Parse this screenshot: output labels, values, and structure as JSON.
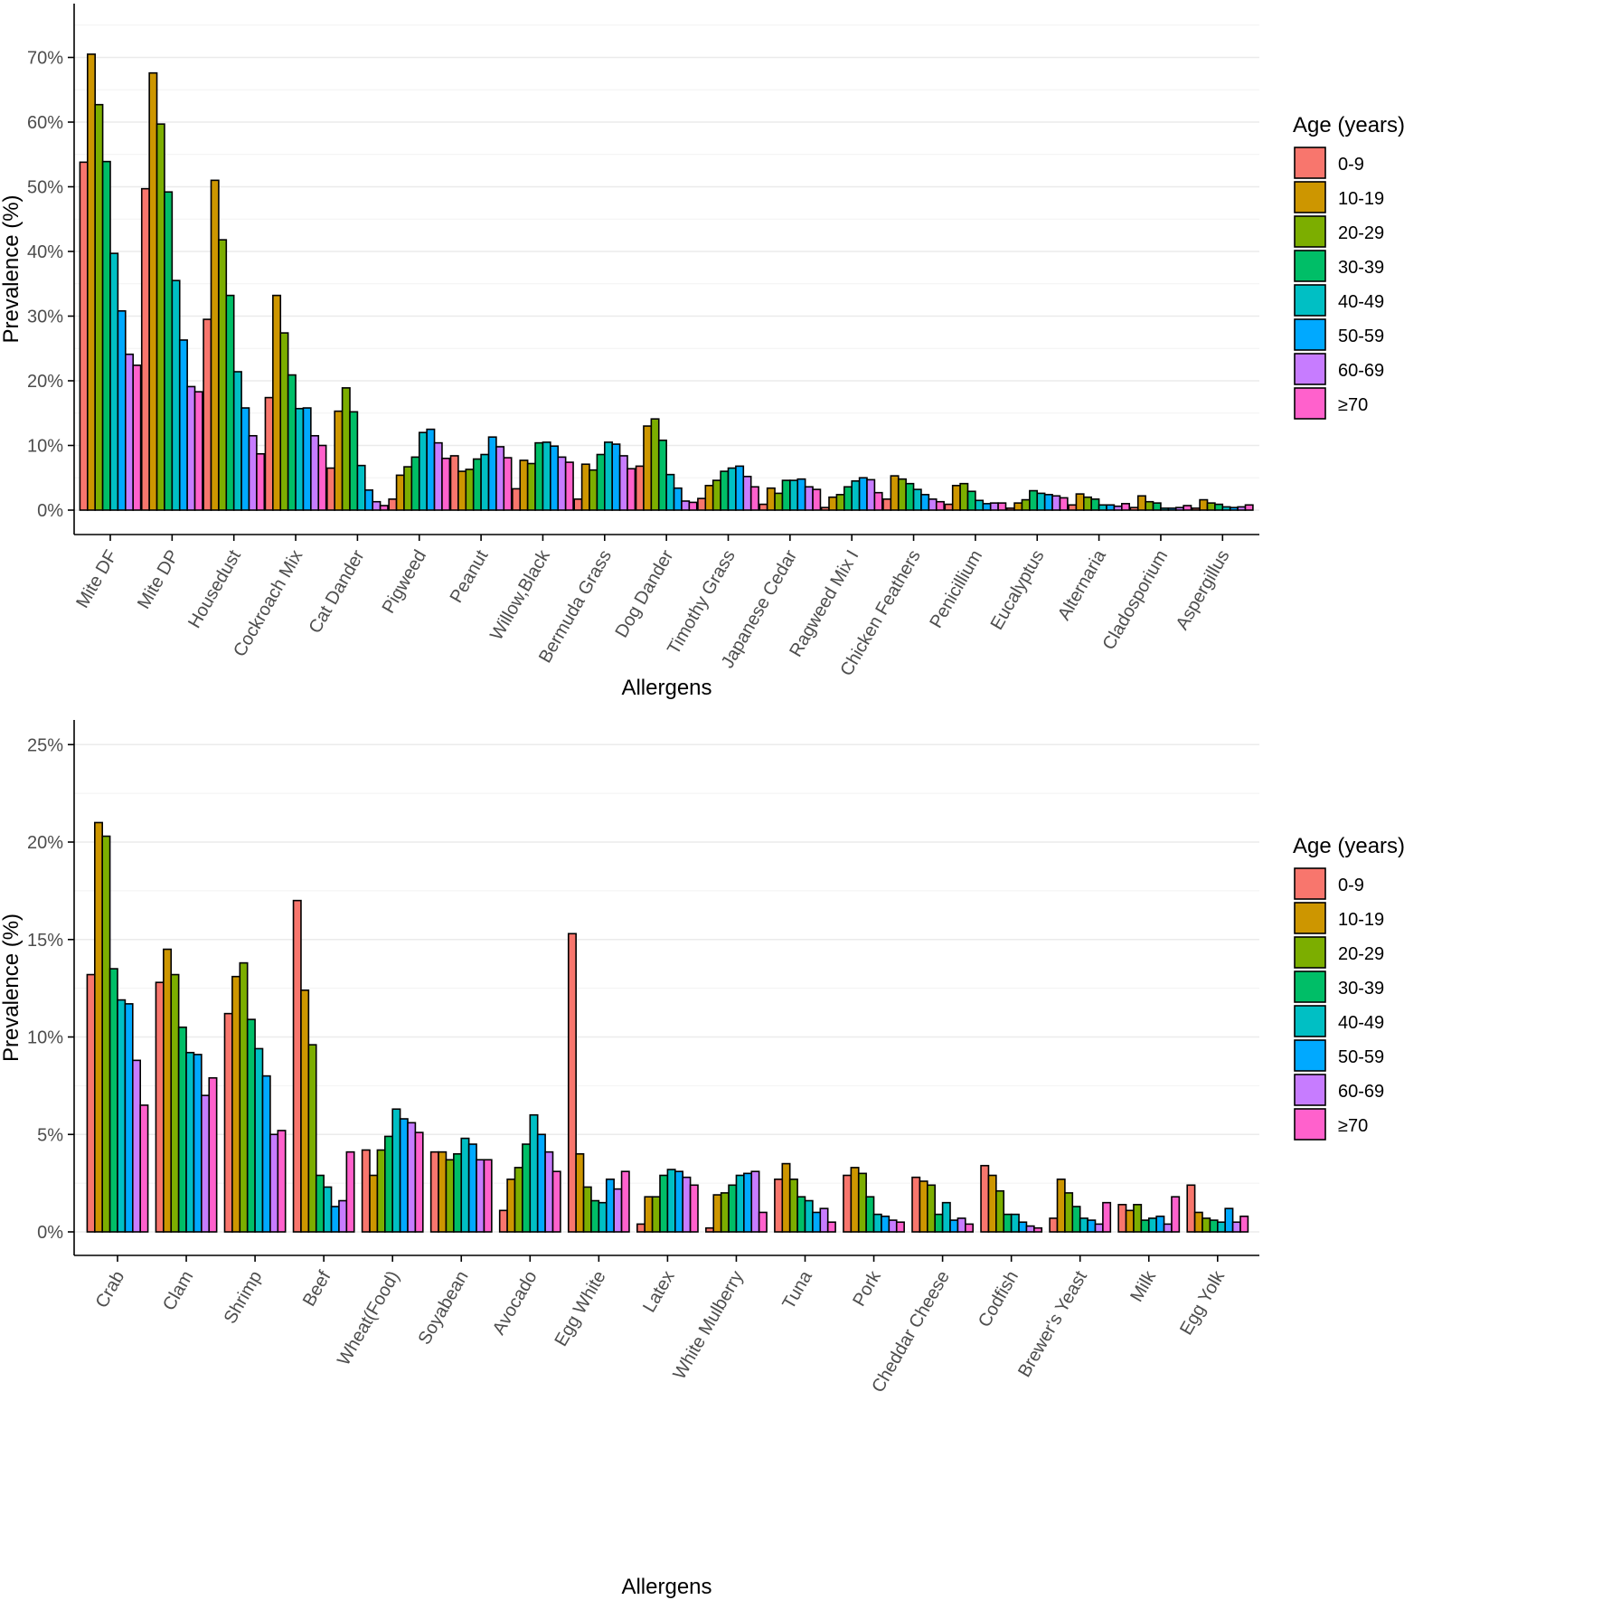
{
  "legend": {
    "title": "Age (years)",
    "groups": [
      "0-9",
      "10-19",
      "20-29",
      "30-39",
      "40-49",
      "50-59",
      "60-69",
      "≥70"
    ],
    "colors": [
      "#F8766D",
      "#CD9600",
      "#7CAE00",
      "#00BE67",
      "#00BFC4",
      "#00A9FF",
      "#C77CFF",
      "#FF61CC"
    ]
  },
  "chart_data": [
    {
      "type": "bar",
      "xlabel": "Allergens",
      "ylabel": "Prevalence (%)",
      "ylim": [
        0,
        75
      ],
      "yticks": [
        0,
        10,
        20,
        30,
        40,
        50,
        60,
        70
      ],
      "ytick_labels": [
        "0%",
        "10%",
        "20%",
        "30%",
        "40%",
        "50%",
        "60%",
        "70%"
      ],
      "grid": true,
      "legend_position": "right",
      "categories": [
        "Mite DF",
        "Mite DP",
        "Housedust",
        "Cockroach Mix",
        "Cat Dander",
        "Pigweed",
        "Peanut",
        "Willow,Black",
        "Bermuda Grass",
        "Dog Dander",
        "Timothy Grass",
        "Japanese Cedar",
        "Ragweed Mix I",
        "Chicken Feathers",
        "Penicillium",
        "Eucalyptus",
        "Alternaria",
        "Cladosporium",
        "Aspergillus"
      ],
      "series": [
        {
          "name": "0-9",
          "values": [
            53.8,
            49.7,
            29.5,
            17.4,
            6.5,
            1.7,
            8.4,
            3.3,
            1.7,
            6.8,
            1.8,
            0.9,
            0.4,
            1.7,
            0.9,
            0.3,
            0.8,
            0.4,
            0.3
          ]
        },
        {
          "name": "10-19",
          "values": [
            70.5,
            67.6,
            51.0,
            33.2,
            15.3,
            5.4,
            6.0,
            7.7,
            7.1,
            13.0,
            3.8,
            3.4,
            2.0,
            5.3,
            3.8,
            1.1,
            2.5,
            2.2,
            1.6
          ]
        },
        {
          "name": "20-29",
          "values": [
            62.7,
            59.7,
            41.8,
            27.4,
            18.9,
            6.7,
            6.3,
            7.2,
            6.2,
            14.1,
            4.6,
            2.6,
            2.4,
            4.8,
            4.1,
            1.6,
            2.0,
            1.3,
            1.1
          ]
        },
        {
          "name": "30-39",
          "values": [
            53.9,
            49.2,
            33.2,
            20.9,
            15.2,
            8.2,
            7.9,
            10.4,
            8.6,
            10.8,
            6.0,
            4.6,
            3.6,
            4.1,
            2.9,
            3.0,
            1.7,
            1.1,
            0.9
          ]
        },
        {
          "name": "40-49",
          "values": [
            39.7,
            35.5,
            21.4,
            15.7,
            6.9,
            12.0,
            8.6,
            10.5,
            10.5,
            5.5,
            6.5,
            4.6,
            4.5,
            3.2,
            1.5,
            2.6,
            0.8,
            0.3,
            0.5
          ]
        },
        {
          "name": "50-59",
          "values": [
            30.8,
            26.3,
            15.8,
            15.8,
            3.1,
            12.5,
            11.3,
            9.9,
            10.2,
            3.4,
            6.8,
            4.8,
            5.0,
            2.4,
            1.0,
            2.4,
            0.8,
            0.3,
            0.4
          ]
        },
        {
          "name": "60-69",
          "values": [
            24.1,
            19.1,
            11.5,
            11.5,
            1.3,
            10.4,
            9.8,
            8.2,
            8.4,
            1.4,
            5.2,
            3.6,
            4.7,
            1.7,
            1.1,
            2.2,
            0.6,
            0.4,
            0.5
          ]
        },
        {
          "name": "≥70",
          "values": [
            22.4,
            18.3,
            8.7,
            10.0,
            0.7,
            8.0,
            8.1,
            7.4,
            6.4,
            1.2,
            3.6,
            3.2,
            2.7,
            1.3,
            1.1,
            1.9,
            1.0,
            0.7,
            0.8
          ]
        }
      ]
    },
    {
      "type": "bar",
      "xlabel": "Allergens",
      "ylabel": "Prevalence (%)",
      "ylim": [
        0,
        26
      ],
      "yticks": [
        0,
        5,
        10,
        15,
        20,
        25
      ],
      "ytick_labels": [
        "0%",
        "5%",
        "10%",
        "15%",
        "20%",
        "25%"
      ],
      "grid": true,
      "legend_position": "right",
      "categories": [
        "Crab",
        "Clam",
        "Shrimp",
        "Beef",
        "Wheat(Food)",
        "Soyabean",
        "Avocado",
        "Egg White",
        "Latex",
        "White Mulberry",
        "Tuna",
        "Pork",
        "Cheddar Cheese",
        "Codfish",
        "Brewer's Yeast",
        "Milk",
        "Egg Yolk"
      ],
      "series": [
        {
          "name": "0-9",
          "values": [
            13.2,
            12.8,
            11.2,
            17.0,
            4.2,
            4.1,
            1.1,
            15.3,
            0.4,
            0.2,
            2.7,
            2.9,
            2.8,
            3.4,
            0.7,
            1.4,
            2.4
          ]
        },
        {
          "name": "10-19",
          "values": [
            21.0,
            14.5,
            13.1,
            12.4,
            2.9,
            4.1,
            2.7,
            4.0,
            1.8,
            1.9,
            3.5,
            3.3,
            2.6,
            2.9,
            2.7,
            1.1,
            1.0
          ]
        },
        {
          "name": "20-29",
          "values": [
            20.3,
            13.2,
            13.8,
            9.6,
            4.2,
            3.7,
            3.3,
            2.3,
            1.8,
            2.0,
            2.7,
            3.0,
            2.4,
            2.1,
            2.0,
            1.4,
            0.7
          ]
        },
        {
          "name": "30-39",
          "values": [
            13.5,
            10.5,
            10.9,
            2.9,
            4.9,
            4.0,
            4.5,
            1.6,
            2.9,
            2.4,
            1.8,
            1.8,
            0.9,
            0.9,
            1.3,
            0.6,
            0.6
          ]
        },
        {
          "name": "40-49",
          "values": [
            11.9,
            9.2,
            9.4,
            2.3,
            6.3,
            4.8,
            6.0,
            1.5,
            3.2,
            2.9,
            1.6,
            0.9,
            1.5,
            0.9,
            0.7,
            0.7,
            0.5
          ]
        },
        {
          "name": "50-59",
          "values": [
            11.7,
            9.1,
            8.0,
            1.3,
            5.8,
            4.5,
            5.0,
            2.7,
            3.1,
            3.0,
            1.0,
            0.8,
            0.6,
            0.5,
            0.6,
            0.8,
            1.2
          ]
        },
        {
          "name": "60-69",
          "values": [
            8.8,
            7.0,
            5.0,
            1.6,
            5.6,
            3.7,
            4.1,
            2.2,
            2.8,
            3.1,
            1.2,
            0.6,
            0.7,
            0.3,
            0.4,
            0.4,
            0.5
          ]
        },
        {
          "name": "≥70",
          "values": [
            6.5,
            7.9,
            5.2,
            4.1,
            5.1,
            3.7,
            3.1,
            3.1,
            2.4,
            1.0,
            0.5,
            0.5,
            0.4,
            0.2,
            1.5,
            1.8,
            0.8
          ]
        }
      ]
    }
  ]
}
